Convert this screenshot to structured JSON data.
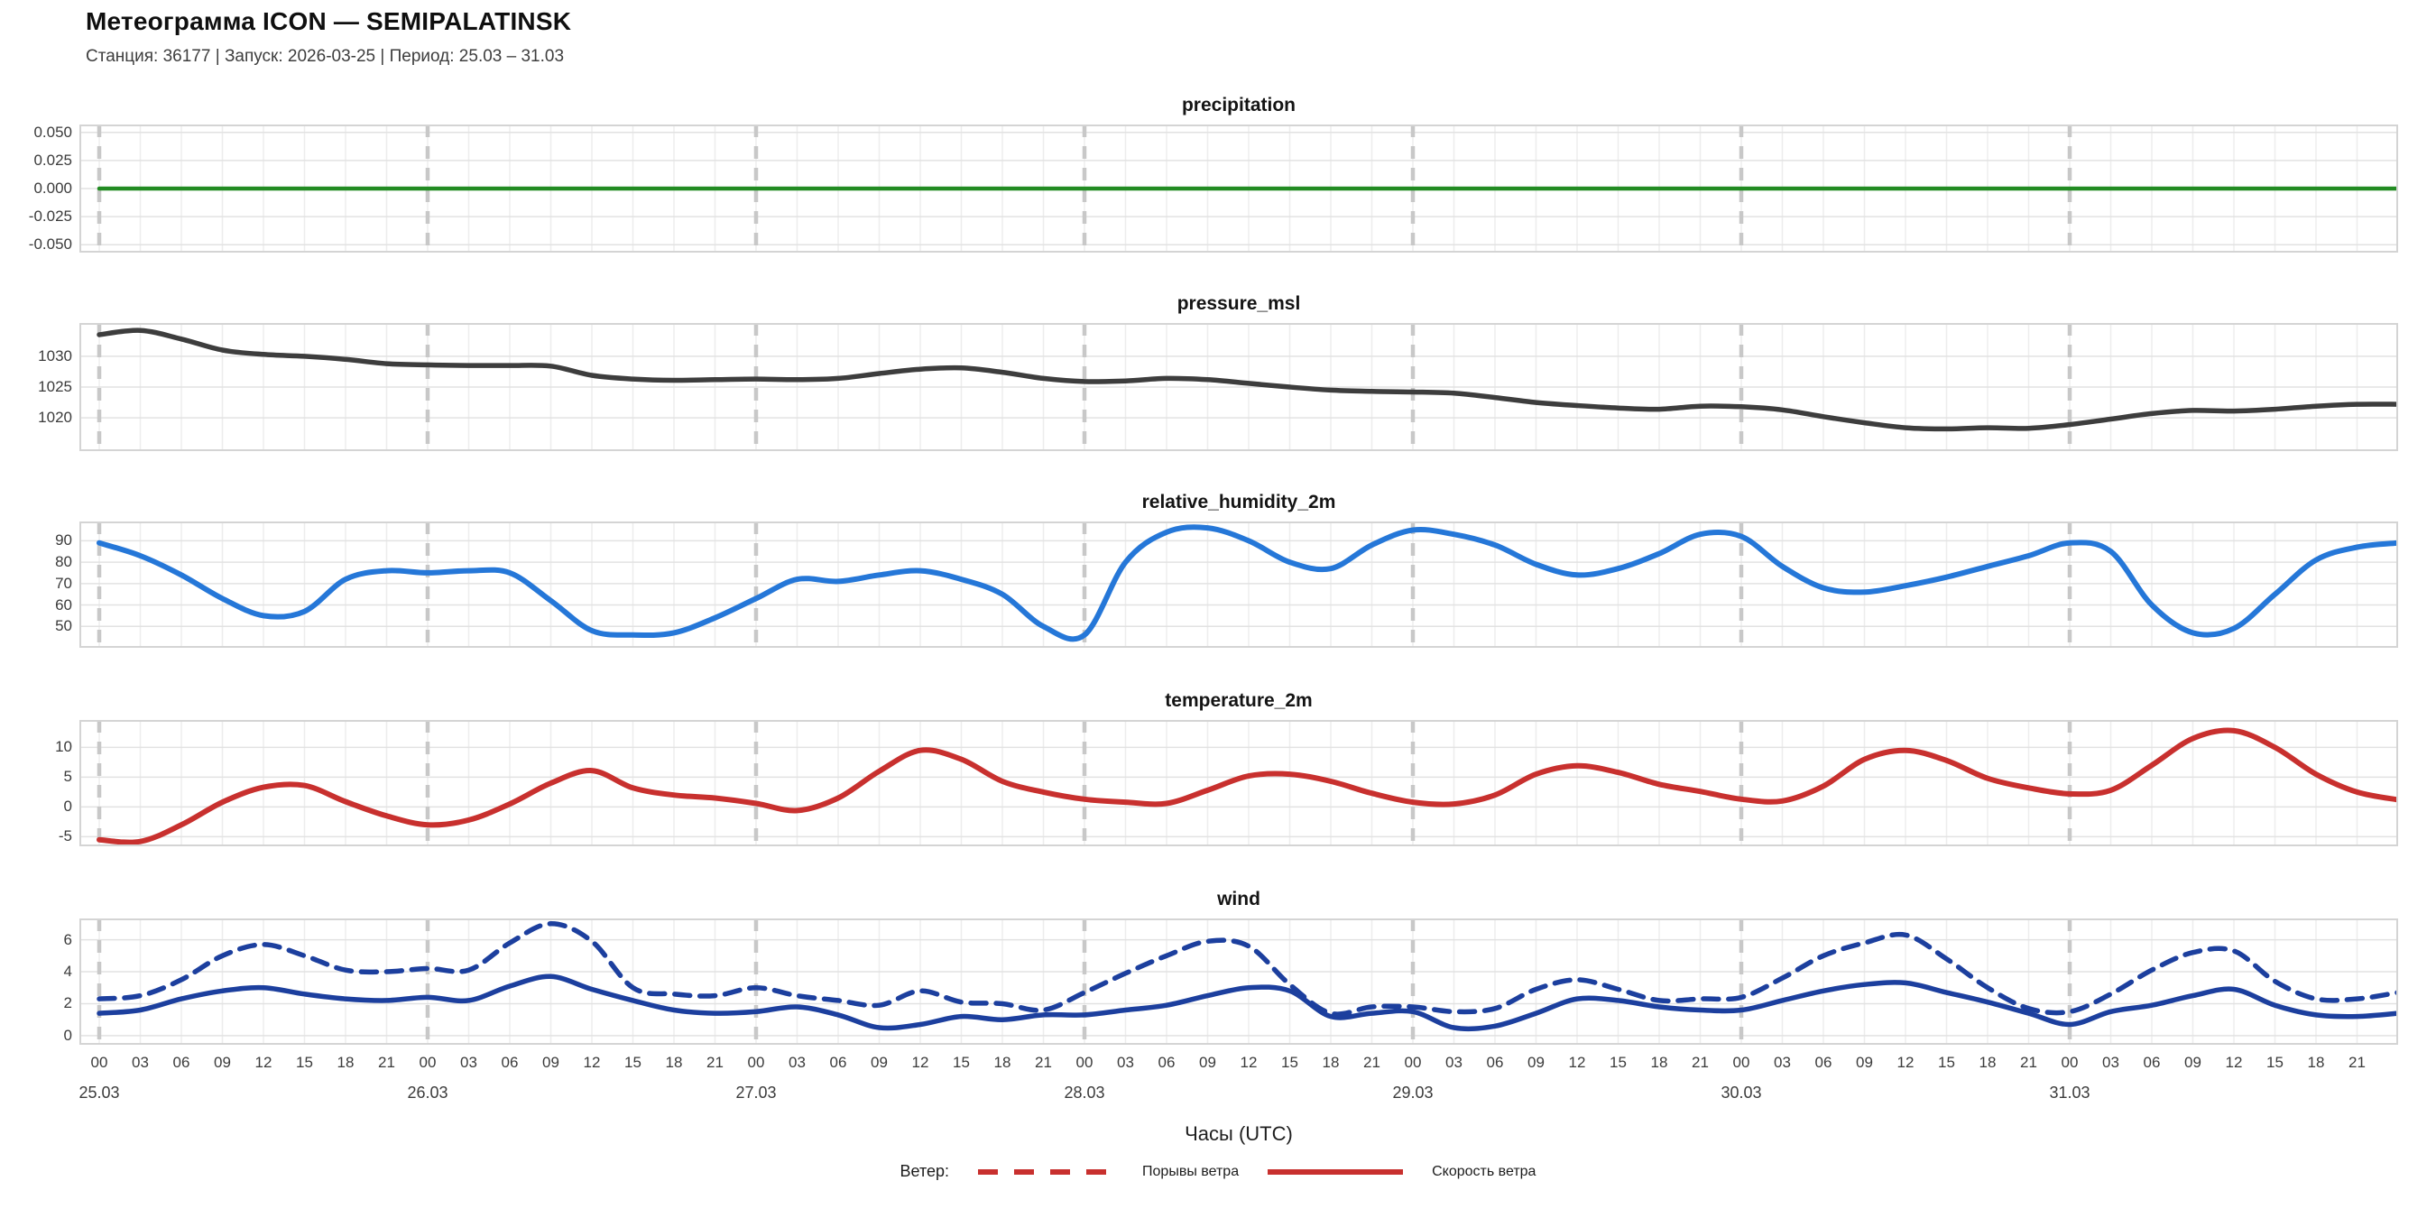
{
  "header": {
    "title": "Метеограмма ICON — SEMIPALATINSK",
    "subtitle": "Станция: 36177  | Запуск: 2026-03-25  | Период: 25.03 – 31.03"
  },
  "xaxis": {
    "label": "Часы (UTC)",
    "hour_ticks": [
      "00",
      "03",
      "06",
      "09",
      "12",
      "15",
      "18",
      "21"
    ],
    "days": [
      "25.03",
      "26.03",
      "27.03",
      "28.03",
      "29.03",
      "30.03",
      "31.03"
    ],
    "day_start_hours": [
      0,
      24,
      48,
      72,
      96,
      120,
      144
    ]
  },
  "legend": {
    "prefix": "Ветер:",
    "color": "#c8302e",
    "items": [
      {
        "label": "Порывы ветра",
        "style": "dashed"
      },
      {
        "label": "Скорость ветра",
        "style": "solid"
      }
    ]
  },
  "colors": {
    "precipitation": "#228B22",
    "pressure": "#3d3d3d",
    "humidity": "#2577d8",
    "temperature": "#c8302e",
    "wind": "#1c3f9e",
    "grid_minor": "#ededed",
    "grid_major": "#e2e2e2",
    "day_marker": "#c8c8c8",
    "spine": "#d4d4d4"
  },
  "chart_data": [
    {
      "type": "line",
      "title": "precipitation",
      "x_start_hour": 0,
      "x_step_hours": 3,
      "ylim": [
        -0.057,
        0.057
      ],
      "ytick_values": [
        0.05,
        0.025,
        0.0,
        -0.025,
        -0.05
      ],
      "ytick_labels": [
        "0.050",
        "0.025",
        "0.000",
        "-0.025",
        "-0.050"
      ],
      "series": [
        {
          "name": "precipitation",
          "color": "#228B22",
          "style": "solid",
          "width": 4.5,
          "values": [
            0,
            0,
            0,
            0,
            0,
            0,
            0,
            0,
            0,
            0,
            0,
            0,
            0,
            0,
            0,
            0,
            0,
            0,
            0,
            0,
            0,
            0,
            0,
            0,
            0,
            0,
            0,
            0,
            0,
            0,
            0,
            0,
            0,
            0,
            0,
            0,
            0,
            0,
            0,
            0,
            0,
            0,
            0,
            0,
            0,
            0,
            0,
            0,
            0,
            0,
            0,
            0,
            0,
            0,
            0,
            0,
            0
          ]
        }
      ]
    },
    {
      "type": "line",
      "title": "pressure_msl",
      "x_start_hour": 0,
      "x_step_hours": 3,
      "ylim": [
        1014.6,
        1035.4
      ],
      "ytick_values": [
        1030,
        1025,
        1020
      ],
      "ytick_labels": [
        "1030",
        "1025",
        "1020"
      ],
      "series": [
        {
          "name": "pressure_msl",
          "color": "#3d3d3d",
          "style": "solid",
          "width": 5.5,
          "values": [
            1033.5,
            1034.2,
            1032.8,
            1031.0,
            1030.3,
            1030.0,
            1029.5,
            1028.8,
            1028.6,
            1028.5,
            1028.5,
            1028.4,
            1026.9,
            1026.3,
            1026.1,
            1026.2,
            1026.3,
            1026.2,
            1026.4,
            1027.2,
            1027.9,
            1028.1,
            1027.4,
            1026.4,
            1025.9,
            1026.0,
            1026.4,
            1026.2,
            1025.6,
            1025.0,
            1024.5,
            1024.3,
            1024.2,
            1024.0,
            1023.3,
            1022.5,
            1022.0,
            1021.6,
            1021.4,
            1021.9,
            1021.8,
            1021.3,
            1020.2,
            1019.2,
            1018.4,
            1018.2,
            1018.4,
            1018.3,
            1018.9,
            1019.8,
            1020.7,
            1021.2,
            1021.1,
            1021.4,
            1021.9,
            1022.2,
            1022.2
          ]
        }
      ]
    },
    {
      "type": "line",
      "title": "relative_humidity_2m",
      "x_start_hour": 0,
      "x_step_hours": 3,
      "ylim": [
        40,
        99
      ],
      "ytick_values": [
        90,
        80,
        70,
        60,
        50
      ],
      "ytick_labels": [
        "90",
        "80",
        "70",
        "60",
        "50"
      ],
      "series": [
        {
          "name": "relative_humidity_2m",
          "color": "#2577d8",
          "style": "solid",
          "width": 6,
          "values": [
            89,
            83,
            74,
            63,
            55,
            57,
            72,
            76,
            75,
            76,
            75,
            62,
            48,
            46,
            47,
            54,
            63,
            72,
            71,
            74,
            76,
            72,
            65,
            50,
            46,
            80,
            94,
            96,
            90,
            80,
            77,
            88,
            95,
            93,
            88,
            79,
            74,
            77,
            84,
            93,
            92,
            78,
            68,
            66,
            69,
            73,
            78,
            83,
            89,
            85,
            60,
            47,
            49,
            65,
            81,
            87,
            89
          ]
        }
      ]
    },
    {
      "type": "line",
      "title": "temperature_2m",
      "x_start_hour": 0,
      "x_step_hours": 3,
      "ylim": [
        -6.6,
        14.6
      ],
      "ytick_values": [
        10,
        5,
        0,
        -5
      ],
      "ytick_labels": [
        "10",
        "5",
        "0",
        "-5"
      ],
      "series": [
        {
          "name": "temperature_2m",
          "color": "#c8302e",
          "style": "solid",
          "width": 6,
          "values": [
            -5.5,
            -5.8,
            -3.0,
            0.8,
            3.3,
            3.6,
            0.9,
            -1.5,
            -3.0,
            -2.2,
            0.5,
            4.0,
            6.1,
            3.2,
            2.0,
            1.5,
            0.6,
            -0.6,
            1.5,
            6.0,
            9.5,
            8.0,
            4.3,
            2.5,
            1.3,
            0.8,
            0.6,
            2.8,
            5.2,
            5.5,
            4.3,
            2.3,
            0.8,
            0.5,
            2.0,
            5.5,
            6.9,
            5.8,
            3.8,
            2.6,
            1.3,
            1.0,
            3.5,
            8.0,
            9.5,
            7.8,
            4.8,
            3.2,
            2.2,
            2.8,
            7.0,
            11.5,
            12.8,
            10.0,
            5.5,
            2.5,
            1.2
          ]
        }
      ]
    },
    {
      "type": "line",
      "title": "wind",
      "x_start_hour": 0,
      "x_step_hours": 3,
      "ylim": [
        -0.57,
        7.33
      ],
      "ytick_values": [
        6,
        4,
        2,
        0
      ],
      "ytick_labels": [
        "6",
        "4",
        "2",
        "0"
      ],
      "series": [
        {
          "name": "Порывы ветра",
          "color": "#1c3f9e",
          "style": "dashed",
          "width": 5.5,
          "values": [
            2.3,
            2.5,
            3.5,
            5.0,
            5.7,
            5.0,
            4.1,
            4.0,
            4.2,
            4.1,
            5.8,
            7.0,
            5.9,
            3.0,
            2.6,
            2.5,
            3.0,
            2.5,
            2.2,
            1.9,
            2.8,
            2.1,
            2.0,
            1.6,
            2.7,
            3.9,
            5.0,
            5.9,
            5.6,
            3.2,
            1.4,
            1.8,
            1.8,
            1.5,
            1.7,
            2.9,
            3.5,
            2.9,
            2.2,
            2.3,
            2.4,
            3.6,
            5.0,
            5.8,
            6.3,
            4.8,
            3.0,
            1.7,
            1.5,
            2.6,
            4.1,
            5.2,
            5.3,
            3.4,
            2.3,
            2.3,
            2.7
          ]
        },
        {
          "name": "Скорость ветра",
          "color": "#1c3f9e",
          "style": "solid",
          "width": 5.5,
          "values": [
            1.4,
            1.6,
            2.3,
            2.8,
            3.0,
            2.6,
            2.3,
            2.2,
            2.4,
            2.2,
            3.1,
            3.7,
            2.9,
            2.2,
            1.6,
            1.4,
            1.5,
            1.8,
            1.3,
            0.5,
            0.7,
            1.2,
            1.0,
            1.3,
            1.3,
            1.6,
            1.9,
            2.5,
            3.0,
            2.8,
            1.2,
            1.4,
            1.5,
            0.5,
            0.6,
            1.4,
            2.3,
            2.2,
            1.8,
            1.6,
            1.6,
            2.2,
            2.8,
            3.2,
            3.3,
            2.7,
            2.1,
            1.4,
            0.7,
            1.5,
            1.9,
            2.5,
            2.9,
            1.9,
            1.3,
            1.2,
            1.4
          ]
        }
      ]
    }
  ]
}
